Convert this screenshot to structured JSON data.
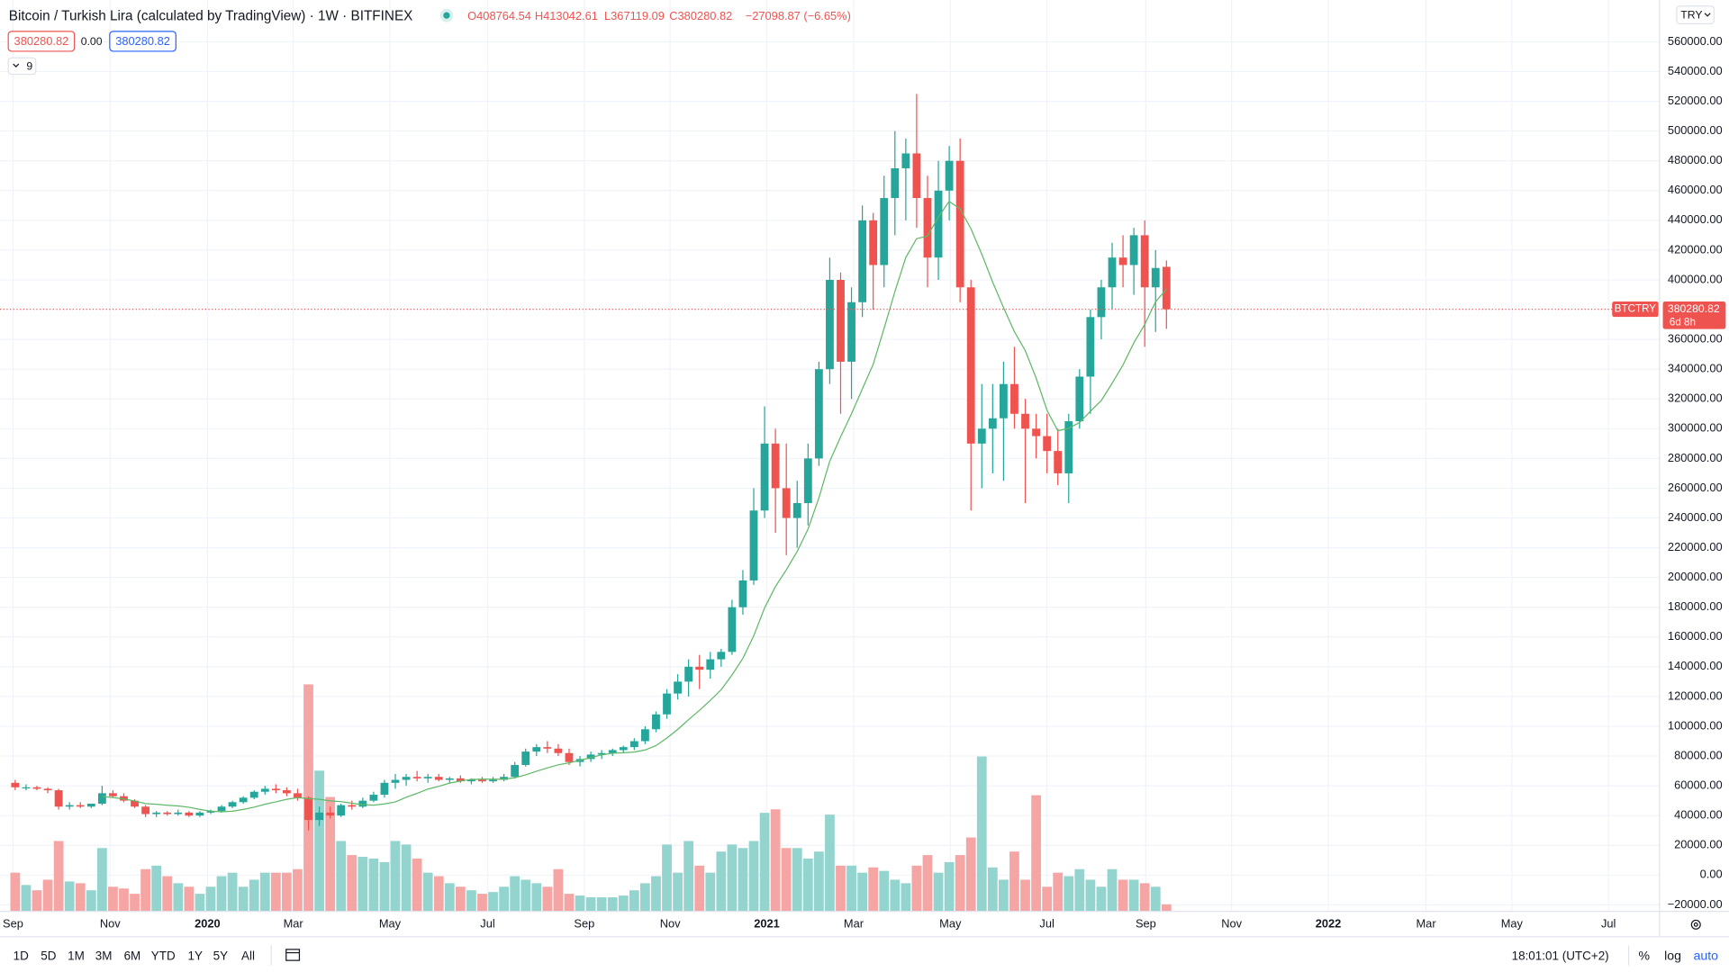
{
  "chart_data": {
    "type": "candlestick",
    "title": "Bitcoin / Turkish Lira (calculated by TradingView) · 1W · BITFINEX",
    "ohlc_labels": [
      "O408764.54",
      "H413042.61",
      "L367119.09",
      "C380280.82"
    ],
    "change": "−27098.87 (−6.65%)",
    "bid": "380280.82",
    "spread": "0.00",
    "ask": "380280.82",
    "ma_period": 9,
    "symbol": "BTCTRY",
    "currency": "TRY",
    "countdown": "6d 8h",
    "last_price": 380280.82,
    "up_color": "#26a69a",
    "down_color": "#ef5350",
    "volume_up_color": "#94d4cf",
    "volume_down_color": "#f5a6a4",
    "ma_color": "#5fb866",
    "grid": true,
    "xlim": [
      -1.4,
      151.4
    ],
    "xticks": [
      {
        "value": -0.2,
        "label": "Sep"
      },
      {
        "value": 8.74,
        "label": "Nov"
      },
      {
        "value": 17.7,
        "label": "2020"
      },
      {
        "value": 25.6,
        "label": "Mar"
      },
      {
        "value": 34.5,
        "label": "May"
      },
      {
        "value": 43.5,
        "label": "Jul"
      },
      {
        "value": 52.4,
        "label": "Sep"
      },
      {
        "value": 60.3,
        "label": "Nov"
      },
      {
        "value": 69.2,
        "label": "2021"
      },
      {
        "value": 77.2,
        "label": "Mar"
      },
      {
        "value": 86.1,
        "label": "May"
      },
      {
        "value": 95.0,
        "label": "Jul"
      },
      {
        "value": 104.1,
        "label": "Sep"
      },
      {
        "value": 112.0,
        "label": "Nov"
      },
      {
        "value": 120.9,
        "label": "2022"
      },
      {
        "value": 129.9,
        "label": "Mar"
      },
      {
        "value": 137.8,
        "label": "May"
      },
      {
        "value": 146.7,
        "label": "Jul"
      }
    ],
    "ylim": [
      -24400,
      588100
    ],
    "yticks": [
      {
        "value": -20000,
        "label": "−20000.00"
      },
      {
        "value": 0,
        "label": "0.00"
      },
      {
        "value": 20000,
        "label": "20000.00"
      },
      {
        "value": 40000,
        "label": "40000.00"
      },
      {
        "value": 60000,
        "label": "60000.00"
      },
      {
        "value": 80000,
        "label": "80000.00"
      },
      {
        "value": 100000,
        "label": "100000.00"
      },
      {
        "value": 120000,
        "label": "120000.00"
      },
      {
        "value": 140000,
        "label": "140000.00"
      },
      {
        "value": 160000,
        "label": "160000.00"
      },
      {
        "value": 180000,
        "label": "180000.00"
      },
      {
        "value": 200000,
        "label": "200000.00"
      },
      {
        "value": 220000,
        "label": "220000.00"
      },
      {
        "value": 240000,
        "label": "240000.00"
      },
      {
        "value": 260000,
        "label": "260000.00"
      },
      {
        "value": 280000,
        "label": "280000.00"
      },
      {
        "value": 300000,
        "label": "300000.00"
      },
      {
        "value": 320000,
        "label": "320000.00"
      },
      {
        "value": 340000,
        "label": "340000.00"
      },
      {
        "value": 360000,
        "label": "360000.00"
      },
      {
        "value": 400000,
        "label": "400000.00"
      },
      {
        "value": 420000,
        "label": "420000.00"
      },
      {
        "value": 440000,
        "label": "440000.00"
      },
      {
        "value": 460000,
        "label": "460000.00"
      },
      {
        "value": 480000,
        "label": "480000.00"
      },
      {
        "value": 500000,
        "label": "500000.00"
      },
      {
        "value": 520000,
        "label": "520000.00"
      },
      {
        "value": 540000,
        "label": "540000.00"
      },
      {
        "value": 560000,
        "label": "560000.00"
      }
    ],
    "open": [
      62000,
      59000,
      59000,
      58000,
      57000,
      46000,
      47000,
      46000,
      48000,
      55000,
      53000,
      50000,
      46000,
      41000,
      42000,
      41000,
      42000,
      40000,
      42000,
      43000,
      46000,
      49000,
      52000,
      56000,
      58000,
      57000,
      55000,
      52000,
      37000,
      42000,
      40000,
      47000,
      46000,
      50000,
      54000,
      62000,
      64000,
      66000,
      65000,
      66000,
      64000,
      65000,
      63000,
      64000,
      63000,
      64000,
      66000,
      74000,
      83000,
      86000,
      85000,
      82000,
      76000,
      78000,
      81000,
      82000,
      84000,
      86000,
      90000,
      98000,
      108000,
      122000,
      130000,
      140000,
      138000,
      145000,
      150000,
      180000,
      198000,
      245000,
      290000,
      260000,
      240000,
      250000,
      280000,
      340000,
      400000,
      345000,
      385000,
      440000,
      410000,
      455000,
      475000,
      485000,
      455000,
      415000,
      460000,
      480000,
      395000,
      290000,
      300000,
      307000,
      330000,
      310000,
      300000,
      295000,
      285000,
      270000,
      305000,
      335000,
      375000,
      395000,
      415000,
      410000,
      430000,
      395000,
      408764.54
    ],
    "high": [
      64000,
      61000,
      60000,
      59000,
      58000,
      49000,
      49000,
      48000,
      60000,
      57000,
      55000,
      51000,
      47000,
      43000,
      43000,
      44000,
      43000,
      43000,
      44000,
      47000,
      50000,
      53000,
      57000,
      60000,
      61000,
      59000,
      58000,
      53000,
      46000,
      46000,
      48000,
      50000,
      52000,
      56000,
      64000,
      68000,
      68000,
      70000,
      68000,
      68000,
      66000,
      67000,
      65000,
      66000,
      66000,
      68000,
      76000,
      85000,
      88000,
      90000,
      88000,
      85000,
      80000,
      83000,
      84000,
      85000,
      87000,
      92000,
      100000,
      110000,
      125000,
      135000,
      145000,
      148000,
      150000,
      152000,
      185000,
      205000,
      260000,
      315000,
      300000,
      290000,
      265000,
      290000,
      345000,
      415000,
      405000,
      395000,
      450000,
      445000,
      470000,
      500000,
      495000,
      525000,
      470000,
      480000,
      490000,
      495000,
      400000,
      330000,
      330000,
      345000,
      355000,
      320000,
      310000,
      310000,
      300000,
      310000,
      340000,
      380000,
      400000,
      425000,
      430000,
      435000,
      440000,
      420000,
      413042.61
    ],
    "low": [
      57000,
      57000,
      57000,
      55000,
      44000,
      44000,
      45000,
      45000,
      47000,
      52000,
      49000,
      45000,
      39000,
      39000,
      40000,
      40000,
      39000,
      39000,
      41000,
      42000,
      45000,
      48000,
      51000,
      54000,
      55000,
      53000,
      50000,
      30000,
      33000,
      38000,
      39000,
      44000,
      45000,
      49000,
      52000,
      58000,
      60000,
      63000,
      62000,
      63000,
      62000,
      62000,
      61000,
      62000,
      62000,
      63000,
      65000,
      73000,
      80000,
      82000,
      80000,
      74000,
      73000,
      76000,
      78000,
      80000,
      82000,
      84000,
      88000,
      96000,
      105000,
      118000,
      120000,
      125000,
      132000,
      140000,
      148000,
      175000,
      195000,
      240000,
      230000,
      215000,
      220000,
      235000,
      275000,
      330000,
      310000,
      320000,
      375000,
      380000,
      395000,
      430000,
      440000,
      435000,
      395000,
      400000,
      440000,
      385000,
      245000,
      260000,
      270000,
      265000,
      300000,
      250000,
      280000,
      270000,
      262000,
      250000,
      300000,
      310000,
      360000,
      380000,
      395000,
      390000,
      355000,
      365000,
      367119.09
    ],
    "close": [
      59000,
      59000,
      58000,
      57000,
      46000,
      47000,
      46000,
      48000,
      55000,
      53000,
      50000,
      46000,
      41000,
      42000,
      41000,
      42000,
      40000,
      42000,
      43000,
      46000,
      49000,
      52000,
      56000,
      58000,
      57000,
      55000,
      52000,
      37000,
      42000,
      40000,
      47000,
      46000,
      50000,
      54000,
      62000,
      64000,
      66000,
      65000,
      66000,
      64000,
      65000,
      63000,
      64000,
      63000,
      64000,
      66000,
      74000,
      83000,
      86000,
      85000,
      82000,
      76000,
      78000,
      81000,
      82000,
      84000,
      86000,
      90000,
      98000,
      108000,
      122000,
      130000,
      140000,
      138000,
      145000,
      150000,
      180000,
      198000,
      245000,
      290000,
      260000,
      240000,
      250000,
      280000,
      340000,
      400000,
      345000,
      385000,
      440000,
      410000,
      455000,
      475000,
      485000,
      455000,
      415000,
      460000,
      480000,
      395000,
      290000,
      300000,
      307000,
      330000,
      310000,
      300000,
      295000,
      285000,
      270000,
      305000,
      335000,
      375000,
      395000,
      415000,
      410000,
      430000,
      395000,
      408000,
      380280.82
    ],
    "volume": [
      22,
      15,
      12,
      18,
      40,
      17,
      16,
      12,
      36,
      14,
      13,
      10,
      24,
      26,
      20,
      16,
      14,
      10,
      14,
      20,
      22,
      14,
      18,
      22,
      22,
      22,
      24,
      129,
      80,
      65,
      40,
      32,
      31,
      30,
      28,
      40,
      38,
      30,
      22,
      20,
      16,
      14,
      12,
      10,
      11,
      14,
      20,
      18,
      16,
      14,
      24,
      10,
      9,
      8,
      8,
      8,
      9,
      12,
      16,
      20,
      38,
      22,
      40,
      26,
      22,
      34,
      38,
      36,
      40,
      56,
      58,
      36,
      36,
      30,
      34,
      55,
      26,
      26,
      22,
      25,
      23,
      18,
      16,
      26,
      32,
      22,
      28,
      32,
      42,
      88,
      25,
      18,
      34,
      18,
      66,
      14,
      22,
      20,
      24,
      18,
      14,
      24,
      18,
      18,
      16,
      14,
      4
    ]
  },
  "toolbar": {
    "ranges": [
      "1D",
      "5D",
      "1M",
      "3M",
      "6M",
      "YTD",
      "1Y",
      "5Y",
      "All"
    ],
    "clock": "18:01:01 (UTC+2)",
    "scale_buttons": [
      "%",
      "log",
      "auto"
    ]
  }
}
